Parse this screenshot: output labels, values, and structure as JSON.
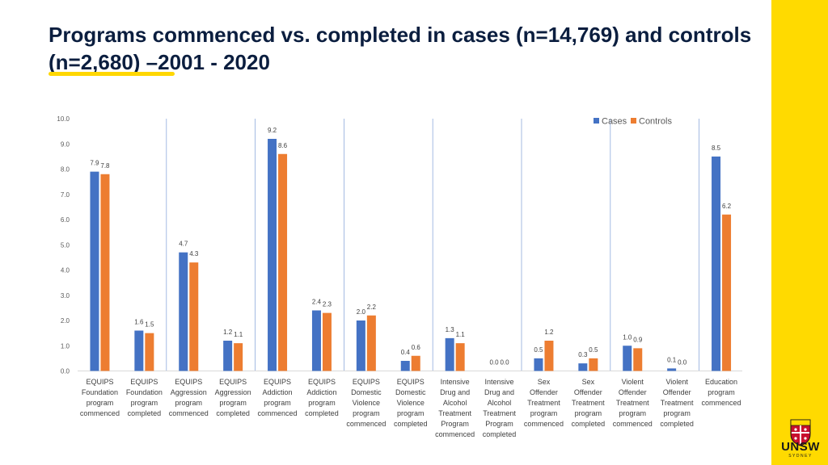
{
  "page": {
    "title": "Programs commenced vs. completed in cases (n=14,769) and controls (n=2,680) –2001 - 2020"
  },
  "logo": {
    "name": "UNSW",
    "subtitle": "SYDNEY"
  },
  "colors": {
    "cases": "#4472c4",
    "controls": "#ed7d31",
    "band": "#ffda00",
    "title": "#0b1e3f"
  },
  "chart_data": {
    "type": "bar",
    "title": "",
    "xlabel": "",
    "ylabel": "",
    "ylim": [
      0,
      10
    ],
    "yticks": [
      "0.0",
      "1.0",
      "2.0",
      "3.0",
      "4.0",
      "5.0",
      "6.0",
      "7.0",
      "8.0",
      "9.0",
      "10.0"
    ],
    "legend_position": "top-right",
    "categories": [
      [
        "EQUIPS",
        "Foundation",
        "program",
        "commenced"
      ],
      [
        "EQUIPS",
        "Foundation",
        "program",
        "completed"
      ],
      [
        "EQUIPS",
        "Aggression",
        "program",
        "commenced"
      ],
      [
        "EQUIPS",
        "Aggression",
        "program",
        "completed"
      ],
      [
        "EQUIPS",
        "Addiction",
        "program",
        "commenced"
      ],
      [
        "EQUIPS",
        "Addiction",
        "program",
        "completed"
      ],
      [
        "EQUIPS",
        "Domestic",
        "Violence",
        "program",
        "commenced"
      ],
      [
        "EQUIPS",
        "Domestic",
        "Violence",
        "program",
        "completed"
      ],
      [
        "Intensive",
        "Drug and",
        "Alcohol",
        "Treatment",
        "Program",
        "commenced"
      ],
      [
        "Intensive",
        "Drug and",
        "Alcohol",
        "Treatment",
        "Program",
        "completed"
      ],
      [
        "Sex",
        "Offender",
        "Treatment",
        "program",
        "commenced"
      ],
      [
        "Sex",
        "Offender",
        "Treatment",
        "program",
        "completed"
      ],
      [
        "Violent",
        "Offender",
        "Treatment",
        "program",
        "commenced"
      ],
      [
        "Violent",
        "Offender",
        "Treatment",
        "program",
        "completed"
      ],
      [
        "Education",
        "program",
        "commenced"
      ]
    ],
    "series": [
      {
        "name": "Cases",
        "values": [
          7.9,
          1.6,
          4.7,
          1.2,
          9.2,
          2.4,
          2.0,
          0.4,
          1.3,
          0.0,
          0.5,
          0.3,
          1.0,
          0.1,
          8.5
        ],
        "labels": [
          "7.9",
          "1.6",
          "4.7",
          "1.2",
          "9.2",
          "2.4",
          "2.0",
          "0.4",
          "1.3",
          "0.0",
          "0.5",
          "0.3",
          "1.0",
          "0.1",
          "8.5"
        ]
      },
      {
        "name": "Controls",
        "values": [
          7.8,
          1.5,
          4.3,
          1.1,
          8.6,
          2.3,
          2.2,
          0.6,
          1.1,
          0.0,
          1.2,
          0.5,
          0.9,
          0.0,
          6.2
        ],
        "labels": [
          "7.8",
          "1.5",
          "4.3",
          "1.1",
          "8.6",
          "2.3",
          "2.2",
          "0.6",
          "1.1",
          "0.0",
          "1.2",
          "0.5",
          "0.9",
          "0.0",
          "6.2"
        ]
      }
    ],
    "group_separators_after": [
      1,
      3,
      5,
      7,
      9,
      11,
      13
    ]
  }
}
